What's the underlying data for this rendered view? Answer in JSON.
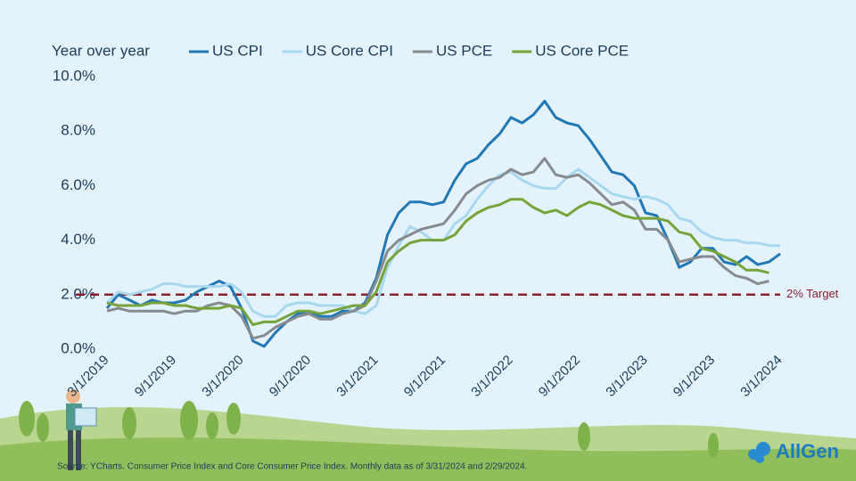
{
  "chart_data": {
    "type": "line",
    "legend_title": "Year over year",
    "categories": [
      "3/1/2019",
      null,
      null,
      null,
      null,
      null,
      "9/1/2019",
      null,
      null,
      null,
      null,
      null,
      "3/1/2020",
      null,
      null,
      null,
      null,
      null,
      "9/1/2020",
      null,
      null,
      null,
      null,
      null,
      "3/1/2021",
      null,
      null,
      null,
      null,
      null,
      "9/1/2021",
      null,
      null,
      null,
      null,
      null,
      "3/1/2022",
      null,
      null,
      null,
      null,
      null,
      "9/1/2022",
      null,
      null,
      null,
      null,
      null,
      "3/1/2023",
      null,
      null,
      null,
      null,
      null,
      "9/1/2023",
      null,
      null,
      null,
      null,
      null,
      "3/1/2024"
    ],
    "series": [
      {
        "name": "US CPI",
        "color": "#2178b5",
        "values": [
          1.5,
          2.0,
          1.8,
          1.6,
          1.8,
          1.7,
          1.7,
          1.8,
          2.1,
          2.3,
          2.5,
          2.3,
          1.5,
          0.3,
          0.1,
          0.6,
          1.0,
          1.3,
          1.4,
          1.2,
          1.2,
          1.4,
          1.4,
          1.7,
          2.6,
          4.2,
          5.0,
          5.4,
          5.4,
          5.3,
          5.4,
          6.2,
          6.8,
          7.0,
          7.5,
          7.9,
          8.5,
          8.3,
          8.6,
          9.1,
          8.5,
          8.3,
          8.2,
          7.7,
          7.1,
          6.5,
          6.4,
          6.0,
          5.0,
          4.9,
          4.0,
          3.0,
          3.2,
          3.7,
          3.7,
          3.2,
          3.1,
          3.4,
          3.1,
          3.2,
          3.5
        ]
      },
      {
        "name": "US Core CPI",
        "color": "#a8d8ef",
        "values": [
          1.7,
          2.1,
          2.0,
          2.1,
          2.2,
          2.4,
          2.4,
          2.3,
          2.3,
          2.3,
          2.3,
          2.4,
          2.1,
          1.4,
          1.2,
          1.2,
          1.6,
          1.7,
          1.7,
          1.6,
          1.6,
          1.6,
          1.4,
          1.3,
          1.6,
          3.0,
          3.8,
          4.5,
          4.3,
          4.0,
          4.0,
          4.6,
          4.9,
          5.5,
          6.0,
          6.4,
          6.5,
          6.2,
          6.0,
          5.9,
          5.9,
          6.3,
          6.6,
          6.3,
          6.0,
          5.7,
          5.6,
          5.5,
          5.6,
          5.5,
          5.3,
          4.8,
          4.7,
          4.3,
          4.1,
          4.0,
          4.0,
          3.9,
          3.9,
          3.8,
          3.8
        ]
      },
      {
        "name": "US PCE",
        "color": "#878b90",
        "values": [
          1.4,
          1.5,
          1.4,
          1.4,
          1.4,
          1.4,
          1.3,
          1.4,
          1.4,
          1.6,
          1.7,
          1.6,
          1.2,
          0.4,
          0.5,
          0.8,
          1.0,
          1.2,
          1.3,
          1.1,
          1.1,
          1.3,
          1.4,
          1.6,
          2.5,
          3.6,
          4.0,
          4.2,
          4.4,
          4.5,
          4.6,
          5.1,
          5.7,
          6.0,
          6.2,
          6.3,
          6.6,
          6.4,
          6.5,
          7.0,
          6.4,
          6.3,
          6.4,
          6.1,
          5.7,
          5.3,
          5.4,
          5.1,
          4.4,
          4.4,
          4.0,
          3.2,
          3.3,
          3.4,
          3.4,
          3.0,
          2.7,
          2.6,
          2.4,
          2.5,
          null
        ]
      },
      {
        "name": "US Core PCE",
        "color": "#76a33a",
        "values": [
          1.7,
          1.6,
          1.6,
          1.6,
          1.7,
          1.7,
          1.6,
          1.6,
          1.5,
          1.5,
          1.5,
          1.6,
          1.5,
          0.9,
          1.0,
          1.0,
          1.2,
          1.4,
          1.4,
          1.3,
          1.4,
          1.5,
          1.6,
          1.6,
          2.1,
          3.2,
          3.6,
          3.9,
          4.0,
          4.0,
          4.0,
          4.2,
          4.7,
          5.0,
          5.2,
          5.3,
          5.5,
          5.5,
          5.2,
          5.0,
          5.1,
          4.9,
          5.2,
          5.4,
          5.3,
          5.1,
          4.9,
          4.8,
          4.8,
          4.8,
          4.7,
          4.3,
          4.2,
          3.7,
          3.6,
          3.4,
          3.2,
          2.9,
          2.9,
          2.8,
          null
        ]
      }
    ],
    "ylim": [
      0,
      10
    ],
    "yticks": [
      {
        "value": 0,
        "label": "0.0%"
      },
      {
        "value": 2,
        "label": "2.0%"
      },
      {
        "value": 4,
        "label": "4.0%"
      },
      {
        "value": 6,
        "label": "6.0%"
      },
      {
        "value": 8,
        "label": "8.0%"
      },
      {
        "value": 10,
        "label": "10.0%"
      }
    ],
    "target": {
      "value": 2,
      "label": "2% Target",
      "color": "#8b1c2c"
    },
    "source": "Source: YCharts. Consumer Price Index and Core Consumer Price Index. Monthly data as of 3/31/2024 and 2/29/2024.",
    "logo": "AllGen"
  }
}
